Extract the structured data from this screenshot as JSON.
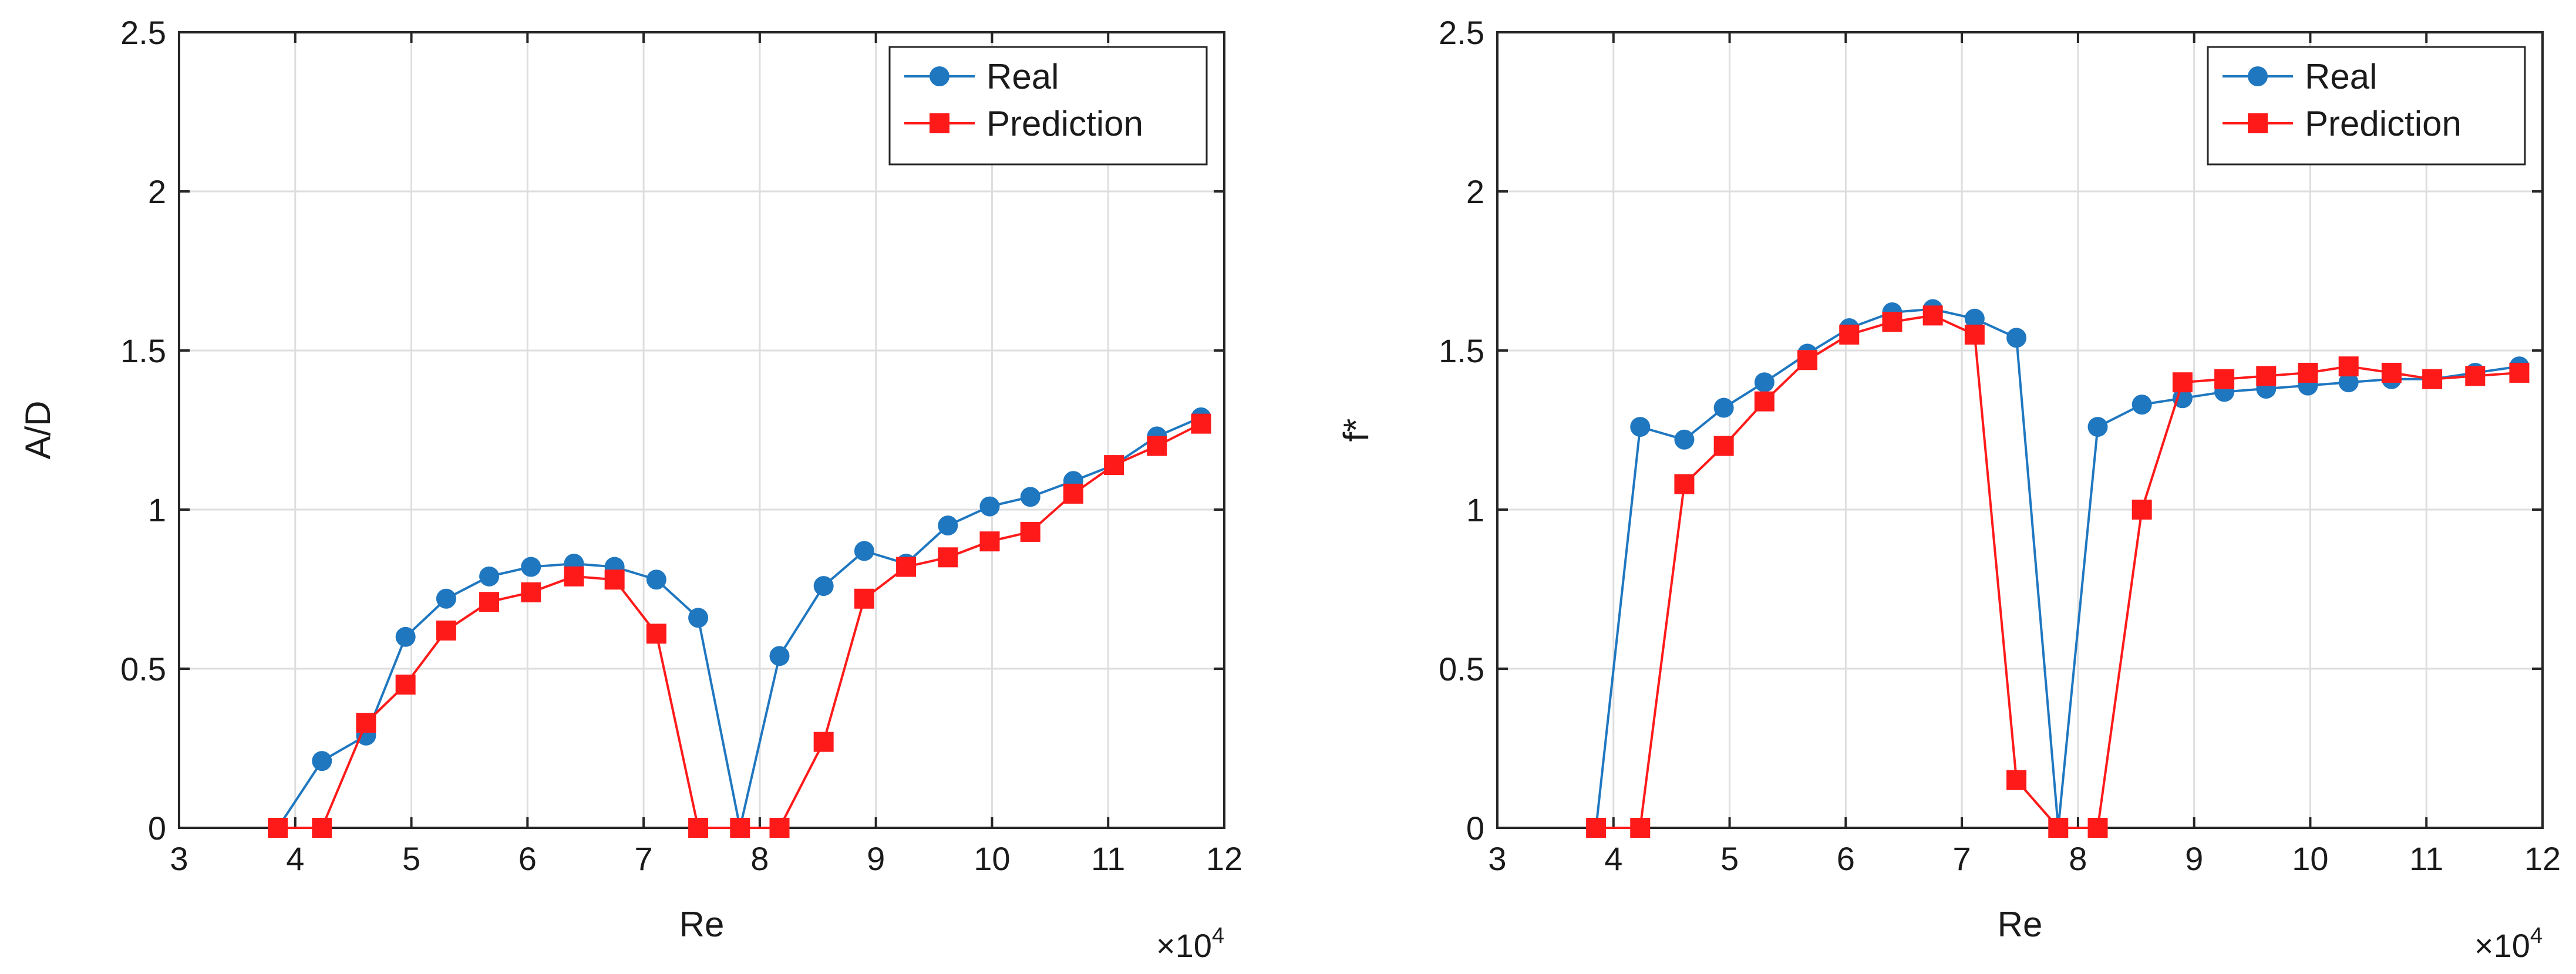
{
  "chart_data": [
    {
      "type": "line",
      "title": "",
      "xlabel": "Re",
      "ylabel": "A/D",
      "x_multiplier": "×10",
      "x_multiplier_exp": "4",
      "xlim": [
        3,
        12
      ],
      "ylim": [
        0,
        2.5
      ],
      "xticks": [
        3,
        4,
        5,
        6,
        7,
        8,
        9,
        10,
        11,
        12
      ],
      "yticks": [
        0,
        0.5,
        1,
        1.5,
        2,
        2.5
      ],
      "xtick_labels": [
        "3",
        "4",
        "5",
        "6",
        "7",
        "8",
        "9",
        "10",
        "11",
        "12"
      ],
      "ytick_labels": [
        "0",
        "0.5",
        "1",
        "1.5",
        "2",
        "2.5"
      ],
      "grid": true,
      "legend_position": "top-right",
      "x": [
        3.85,
        4.23,
        4.61,
        4.95,
        5.3,
        5.67,
        6.03,
        6.4,
        6.75,
        7.11,
        7.47,
        7.83,
        8.17,
        8.55,
        8.9,
        9.26,
        9.62,
        9.98,
        10.33,
        10.7,
        11.05,
        11.42,
        11.8
      ],
      "series": [
        {
          "name": "Real",
          "color": "#1f77c0",
          "marker": "circle",
          "values": [
            0,
            0.21,
            0.29,
            0.6,
            0.72,
            0.79,
            0.82,
            0.83,
            0.82,
            0.78,
            0.66,
            0,
            0.54,
            0.76,
            0.87,
            0.83,
            0.95,
            1.01,
            1.04,
            1.09,
            1.14,
            1.23,
            1.29
          ]
        },
        {
          "name": "Prediction",
          "color": "#ff1a1a",
          "marker": "square",
          "values": [
            0,
            0,
            0.33,
            0.45,
            0.62,
            0.71,
            0.74,
            0.79,
            0.78,
            0.61,
            0,
            0,
            0,
            0.27,
            0.72,
            0.82,
            0.85,
            0.9,
            0.93,
            1.05,
            1.14,
            1.2,
            1.27
          ]
        }
      ]
    },
    {
      "type": "line",
      "title": "",
      "xlabel": "Re",
      "ylabel": "f*",
      "x_multiplier": "×10",
      "x_multiplier_exp": "4",
      "xlim": [
        3,
        12
      ],
      "ylim": [
        0,
        2.5
      ],
      "xticks": [
        3,
        4,
        5,
        6,
        7,
        8,
        9,
        10,
        11,
        12
      ],
      "yticks": [
        0,
        0.5,
        1,
        1.5,
        2,
        2.5
      ],
      "xtick_labels": [
        "3",
        "4",
        "5",
        "6",
        "7",
        "8",
        "9",
        "10",
        "11",
        "12"
      ],
      "ytick_labels": [
        "0",
        "0.5",
        "1",
        "1.5",
        "2",
        "2.5"
      ],
      "grid": true,
      "legend_position": "top-right",
      "x": [
        3.85,
        4.23,
        4.61,
        4.95,
        5.3,
        5.67,
        6.03,
        6.4,
        6.75,
        7.11,
        7.47,
        7.83,
        8.17,
        8.55,
        8.9,
        9.26,
        9.62,
        9.98,
        10.33,
        10.7,
        11.05,
        11.42,
        11.8
      ],
      "series": [
        {
          "name": "Real",
          "color": "#1f77c0",
          "marker": "circle",
          "values": [
            0,
            1.26,
            1.22,
            1.32,
            1.4,
            1.49,
            1.57,
            1.62,
            1.63,
            1.6,
            1.54,
            0,
            1.26,
            1.33,
            1.35,
            1.37,
            1.38,
            1.39,
            1.4,
            1.41,
            1.41,
            1.43,
            1.45
          ]
        },
        {
          "name": "Prediction",
          "color": "#ff1a1a",
          "marker": "square",
          "values": [
            0,
            0,
            1.08,
            1.2,
            1.34,
            1.47,
            1.55,
            1.59,
            1.61,
            1.55,
            0.15,
            0,
            0,
            1.0,
            1.4,
            1.41,
            1.42,
            1.43,
            1.45,
            1.43,
            1.41,
            1.42,
            1.43
          ]
        }
      ]
    }
  ]
}
